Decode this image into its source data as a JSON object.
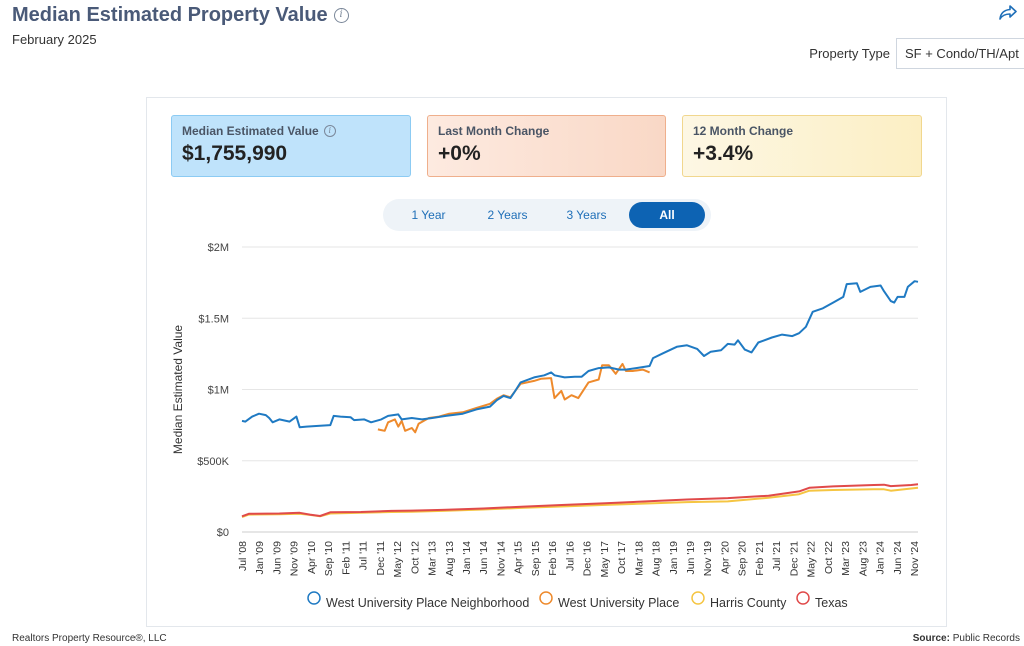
{
  "header": {
    "title": "Median Estimated Property Value",
    "subtitle": "February 2025",
    "share_icon": "share-arrow-icon",
    "property_type_label": "Property Type",
    "property_type_value": "SF + Condo/TH/Apt"
  },
  "stats": [
    {
      "label": "Median Estimated Value",
      "value": "$1,755,990",
      "has_info": true
    },
    {
      "label": "Last Month Change",
      "value": "+0%"
    },
    {
      "label": "12 Month Change",
      "value": "+3.4%"
    }
  ],
  "tabs": [
    "1 Year",
    "2 Years",
    "3 Years",
    "All"
  ],
  "active_tab": "All",
  "footer": {
    "left": "Realtors Property Resource®, LLC",
    "right_label": "Source:",
    "right_value": "Public Records"
  },
  "colors": {
    "accent": "#0d63b3",
    "series_neighborhood": "#1f7ac3",
    "series_wup": "#ee8a2c",
    "series_harris": "#f5c542",
    "series_texas": "#e04a4a"
  },
  "chart_data": {
    "type": "line",
    "ylabel": "Median Estimated Value",
    "xlabel": "",
    "ylim": [
      0,
      2000000
    ],
    "y_ticks": [
      0,
      500000,
      1000000,
      1500000,
      2000000
    ],
    "y_tick_labels": [
      "$0",
      "$500K",
      "$1M",
      "$1.5M",
      "$2M"
    ],
    "x_tick_labels": [
      "Jul '08",
      "Jan '09",
      "Jun '09",
      "Nov '09",
      "Apr '10",
      "Sep '10",
      "Feb '11",
      "Jul '11",
      "Dec '11",
      "May '12",
      "Oct '12",
      "Mar '13",
      "Aug '13",
      "Jan '14",
      "Jun '14",
      "Nov '14",
      "Apr '15",
      "Sep '15",
      "Feb '16",
      "Jul '16",
      "Dec '16",
      "May '17",
      "Oct '17",
      "Mar '18",
      "Aug '18",
      "Jan '19",
      "Jun '19",
      "Nov '19",
      "Apr '20",
      "Sep '20",
      "Feb '21",
      "Jul '21",
      "Dec '21",
      "May '22",
      "Oct '22",
      "Mar '23",
      "Aug '23",
      "Jan '24",
      "Jun '24",
      "Nov '24"
    ],
    "x_range": [
      "2008-07",
      "2025-02"
    ],
    "legend_position": "bottom",
    "series": [
      {
        "name": "West University Place Neighborhood",
        "color": "#1f7ac3",
        "points": [
          [
            "2008-07",
            780000
          ],
          [
            "2008-08",
            775000
          ],
          [
            "2008-10",
            810000
          ],
          [
            "2008-12",
            830000
          ],
          [
            "2009-02",
            820000
          ],
          [
            "2009-03",
            800000
          ],
          [
            "2009-04",
            770000
          ],
          [
            "2009-06",
            790000
          ],
          [
            "2009-09",
            775000
          ],
          [
            "2009-11",
            810000
          ],
          [
            "2009-12",
            735000
          ],
          [
            "2010-02",
            740000
          ],
          [
            "2010-06",
            745000
          ],
          [
            "2010-09",
            750000
          ],
          [
            "2010-10",
            815000
          ],
          [
            "2010-12",
            810000
          ],
          [
            "2011-03",
            805000
          ],
          [
            "2011-04",
            785000
          ],
          [
            "2011-07",
            790000
          ],
          [
            "2011-09",
            770000
          ],
          [
            "2011-12",
            790000
          ],
          [
            "2012-02",
            815000
          ],
          [
            "2012-05",
            825000
          ],
          [
            "2012-06",
            790000
          ],
          [
            "2012-09",
            800000
          ],
          [
            "2012-12",
            790000
          ],
          [
            "2013-03",
            800000
          ],
          [
            "2013-07",
            815000
          ],
          [
            "2013-12",
            830000
          ],
          [
            "2014-04",
            860000
          ],
          [
            "2014-08",
            880000
          ],
          [
            "2014-10",
            925000
          ],
          [
            "2014-12",
            955000
          ],
          [
            "2015-02",
            940000
          ],
          [
            "2015-03",
            975000
          ],
          [
            "2015-05",
            1050000
          ],
          [
            "2015-09",
            1085000
          ],
          [
            "2015-12",
            1100000
          ],
          [
            "2016-02",
            1120000
          ],
          [
            "2016-03",
            1100000
          ],
          [
            "2016-06",
            1085000
          ],
          [
            "2016-09",
            1090000
          ],
          [
            "2016-11",
            1090000
          ],
          [
            "2017-01",
            1130000
          ],
          [
            "2017-04",
            1150000
          ],
          [
            "2017-07",
            1155000
          ],
          [
            "2017-10",
            1140000
          ],
          [
            "2017-12",
            1140000
          ],
          [
            "2018-03",
            1150000
          ],
          [
            "2018-07",
            1165000
          ],
          [
            "2018-08",
            1220000
          ],
          [
            "2018-11",
            1255000
          ],
          [
            "2019-03",
            1300000
          ],
          [
            "2019-06",
            1310000
          ],
          [
            "2019-09",
            1285000
          ],
          [
            "2019-11",
            1235000
          ],
          [
            "2020-01",
            1265000
          ],
          [
            "2020-04",
            1275000
          ],
          [
            "2020-06",
            1320000
          ],
          [
            "2020-08",
            1315000
          ],
          [
            "2020-09",
            1345000
          ],
          [
            "2020-11",
            1280000
          ],
          [
            "2021-01",
            1260000
          ],
          [
            "2021-03",
            1330000
          ],
          [
            "2021-07",
            1365000
          ],
          [
            "2021-10",
            1385000
          ],
          [
            "2022-01",
            1375000
          ],
          [
            "2022-03",
            1395000
          ],
          [
            "2022-05",
            1440000
          ],
          [
            "2022-07",
            1545000
          ],
          [
            "2022-10",
            1570000
          ],
          [
            "2023-01",
            1610000
          ],
          [
            "2023-04",
            1650000
          ],
          [
            "2023-05",
            1740000
          ],
          [
            "2023-08",
            1745000
          ],
          [
            "2023-09",
            1685000
          ],
          [
            "2023-12",
            1720000
          ],
          [
            "2024-03",
            1730000
          ],
          [
            "2024-04",
            1690000
          ],
          [
            "2024-06",
            1620000
          ],
          [
            "2024-07",
            1610000
          ],
          [
            "2024-08",
            1650000
          ],
          [
            "2024-10",
            1650000
          ],
          [
            "2024-11",
            1720000
          ],
          [
            "2025-01",
            1760000
          ],
          [
            "2025-02",
            1755990
          ]
        ]
      },
      {
        "name": "West University Place",
        "color": "#ee8a2c",
        "points": [
          [
            "2011-11",
            720000
          ],
          [
            "2011-12",
            715000
          ],
          [
            "2012-01",
            710000
          ],
          [
            "2012-02",
            770000
          ],
          [
            "2012-04",
            790000
          ],
          [
            "2012-05",
            740000
          ],
          [
            "2012-06",
            780000
          ],
          [
            "2012-07",
            710000
          ],
          [
            "2012-09",
            730000
          ],
          [
            "2012-10",
            700000
          ],
          [
            "2012-11",
            760000
          ],
          [
            "2013-02",
            800000
          ],
          [
            "2013-05",
            810000
          ],
          [
            "2013-08",
            830000
          ],
          [
            "2013-12",
            840000
          ],
          [
            "2014-04",
            870000
          ],
          [
            "2014-08",
            900000
          ],
          [
            "2014-10",
            935000
          ],
          [
            "2014-12",
            960000
          ],
          [
            "2015-02",
            945000
          ],
          [
            "2015-05",
            1040000
          ],
          [
            "2015-09",
            1060000
          ],
          [
            "2015-11",
            1075000
          ],
          [
            "2016-02",
            1080000
          ],
          [
            "2016-03",
            940000
          ],
          [
            "2016-05",
            990000
          ],
          [
            "2016-06",
            930000
          ],
          [
            "2016-08",
            960000
          ],
          [
            "2016-10",
            940000
          ],
          [
            "2017-01",
            1050000
          ],
          [
            "2017-04",
            1070000
          ],
          [
            "2017-05",
            1170000
          ],
          [
            "2017-07",
            1170000
          ],
          [
            "2017-09",
            1110000
          ],
          [
            "2017-11",
            1180000
          ],
          [
            "2017-12",
            1130000
          ],
          [
            "2018-02",
            1130000
          ],
          [
            "2018-05",
            1140000
          ],
          [
            "2018-07",
            1120000
          ]
        ]
      },
      {
        "name": "Harris County",
        "color": "#f5c542",
        "points": [
          [
            "2008-07",
            105000
          ],
          [
            "2008-09",
            122000
          ],
          [
            "2009-06",
            125000
          ],
          [
            "2009-12",
            128000
          ],
          [
            "2010-03",
            120000
          ],
          [
            "2010-06",
            110000
          ],
          [
            "2010-09",
            130000
          ],
          [
            "2011-06",
            135000
          ],
          [
            "2012-03",
            140000
          ],
          [
            "2012-09",
            142000
          ],
          [
            "2013-06",
            148000
          ],
          [
            "2014-06",
            158000
          ],
          [
            "2015-06",
            170000
          ],
          [
            "2016-06",
            180000
          ],
          [
            "2017-06",
            190000
          ],
          [
            "2018-06",
            200000
          ],
          [
            "2019-06",
            210000
          ],
          [
            "2020-06",
            215000
          ],
          [
            "2021-06",
            240000
          ],
          [
            "2022-03",
            265000
          ],
          [
            "2022-06",
            290000
          ],
          [
            "2023-01",
            295000
          ],
          [
            "2024-01",
            300000
          ],
          [
            "2024-04",
            300000
          ],
          [
            "2024-06",
            290000
          ],
          [
            "2024-12",
            305000
          ],
          [
            "2025-02",
            310000
          ]
        ]
      },
      {
        "name": "Texas",
        "color": "#e04a4a",
        "points": [
          [
            "2008-07",
            110000
          ],
          [
            "2008-09",
            128000
          ],
          [
            "2009-06",
            130000
          ],
          [
            "2009-12",
            135000
          ],
          [
            "2010-03",
            122000
          ],
          [
            "2010-06",
            112000
          ],
          [
            "2010-09",
            138000
          ],
          [
            "2011-06",
            140000
          ],
          [
            "2012-03",
            148000
          ],
          [
            "2012-09",
            150000
          ],
          [
            "2013-06",
            155000
          ],
          [
            "2014-06",
            165000
          ],
          [
            "2015-06",
            178000
          ],
          [
            "2016-06",
            190000
          ],
          [
            "2017-06",
            202000
          ],
          [
            "2018-06",
            215000
          ],
          [
            "2019-06",
            228000
          ],
          [
            "2020-06",
            238000
          ],
          [
            "2021-06",
            255000
          ],
          [
            "2022-03",
            285000
          ],
          [
            "2022-06",
            310000
          ],
          [
            "2023-01",
            320000
          ],
          [
            "2024-01",
            330000
          ],
          [
            "2024-04",
            332000
          ],
          [
            "2024-06",
            322000
          ],
          [
            "2024-12",
            330000
          ],
          [
            "2025-02",
            335000
          ]
        ]
      }
    ]
  }
}
